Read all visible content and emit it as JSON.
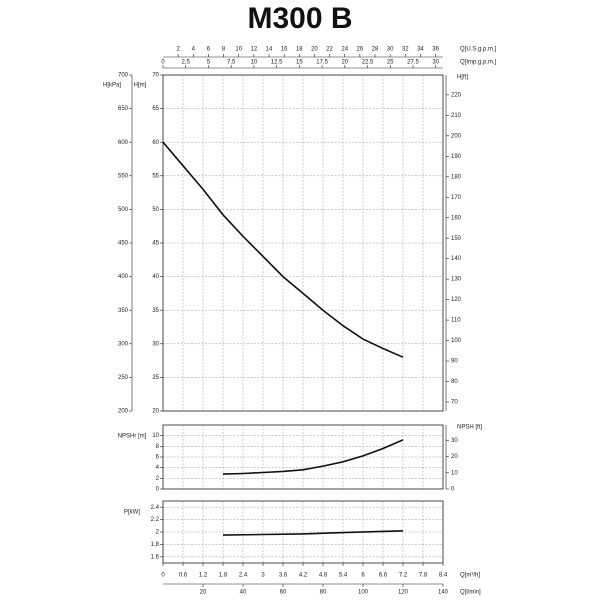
{
  "chart_data": [
    {
      "type": "line",
      "title": "M300 B",
      "x_us_label": "Q[U.S.g.p.m.]",
      "x_us_lim": [
        0,
        36.98
      ],
      "x_us_ticks": [
        2,
        4,
        6,
        8,
        10,
        12,
        14,
        16,
        18,
        20,
        22,
        24,
        26,
        28,
        30,
        32,
        34,
        36
      ],
      "x_imp_label": "Q[Imp.g.p.m.]",
      "x_imp_lim": [
        0,
        30.8
      ],
      "x_imp_ticks": [
        0,
        2.5,
        5,
        7.5,
        10,
        12.5,
        15,
        17.5,
        20,
        22.5,
        25,
        27.5,
        30
      ],
      "ylabel": "H[m]",
      "ylim": [
        20,
        70
      ],
      "yticks": [
        20,
        25,
        30,
        35,
        40,
        45,
        50,
        55,
        60,
        65,
        70
      ],
      "y_kpa_label": "H[kPa]",
      "y_kpa_lim": [
        200,
        700
      ],
      "y_kpa_ticks": [
        200,
        250,
        300,
        350,
        400,
        450,
        500,
        550,
        600,
        650,
        700
      ],
      "y2label": "H[ft]",
      "y2lim": [
        65.6,
        229.7
      ],
      "y2ticks": [
        70,
        80,
        90,
        100,
        110,
        120,
        130,
        140,
        150,
        160,
        170,
        180,
        190,
        200,
        210,
        220
      ],
      "xlim": [
        0,
        8.4
      ],
      "x": [
        0,
        0.6,
        1.2,
        1.8,
        2.4,
        3,
        3.6,
        4.2,
        4.8,
        5.4,
        6,
        6.6,
        7.2
      ],
      "values": [
        60,
        56.5,
        53,
        49.2,
        46,
        43,
        40,
        37.5,
        35,
        32.7,
        30.7,
        29.3,
        28
      ],
      "color": "#111111"
    },
    {
      "type": "line",
      "ylabel": "NPSHr [m]",
      "ylim": [
        0,
        12
      ],
      "yticks": [
        0,
        2,
        4,
        6,
        8,
        10
      ],
      "y2label": "NPSH [ft]",
      "y2lim": [
        0,
        39.4
      ],
      "y2ticks": [
        0,
        10,
        20,
        30
      ],
      "xlim": [
        0,
        8.4
      ],
      "x": [
        1.8,
        2.4,
        3,
        3.6,
        4.2,
        4.8,
        5.4,
        6,
        6.6,
        7.2
      ],
      "values": [
        2.8,
        2.9,
        3.1,
        3.3,
        3.6,
        4.3,
        5.1,
        6.2,
        7.6,
        9.2
      ],
      "color": "#111111"
    },
    {
      "type": "line",
      "ylabel": "P[kW]",
      "ylim": [
        1.5,
        2.5
      ],
      "yticks": [
        1.6,
        1.8,
        2,
        2.2,
        2.4
      ],
      "xlabel": "Q[m³/h]",
      "xlim": [
        0,
        8.4
      ],
      "xticks": [
        0,
        0.6,
        1.2,
        1.8,
        2.4,
        3,
        3.6,
        4.2,
        4.8,
        5.4,
        6,
        6.6,
        7.2,
        7.8,
        8.4
      ],
      "x_lmin_label": "Q[l/min]",
      "x_lmin_lim": [
        0,
        140
      ],
      "x_lmin_ticks": [
        20,
        40,
        60,
        80,
        100,
        120,
        140
      ],
      "x": [
        1.8,
        3,
        4.2,
        5.4,
        6.6,
        7.2
      ],
      "values": [
        1.95,
        1.96,
        1.97,
        1.99,
        2.01,
        2.02
      ],
      "color": "#111111"
    }
  ]
}
